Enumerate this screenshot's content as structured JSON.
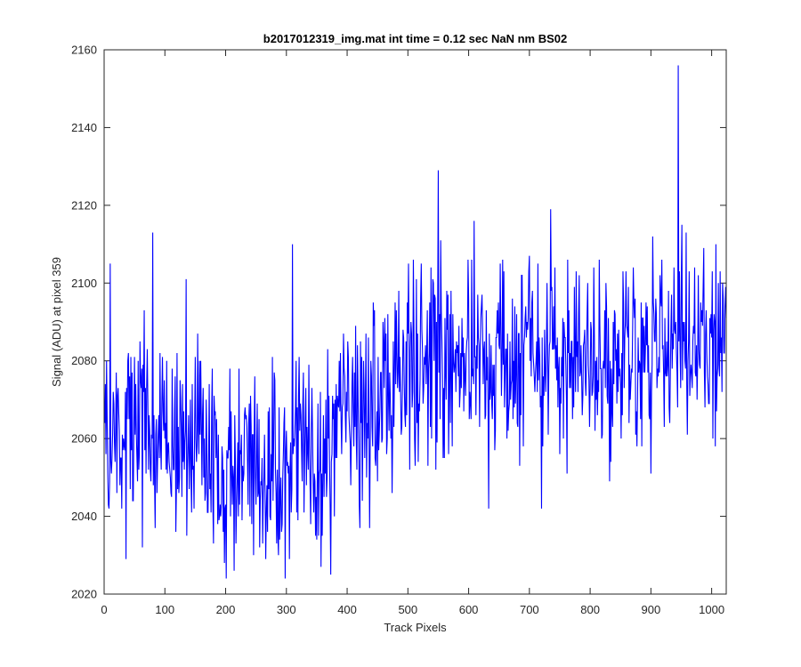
{
  "chart_data": {
    "type": "line",
    "title": "b2017012319_img.mat int time = 0.12 sec  NaN nm BS02",
    "xlabel": "Track Pixels",
    "ylabel": "Signal (ADU) at pixel 359",
    "xlim": [
      0,
      1024
    ],
    "ylim": [
      2020,
      2160
    ],
    "xticks": [
      0,
      100,
      200,
      300,
      400,
      500,
      600,
      700,
      800,
      900,
      1000
    ],
    "yticks": [
      2020,
      2040,
      2060,
      2080,
      2100,
      2120,
      2140,
      2160
    ],
    "grid": false,
    "line_color": "#0000ff",
    "series": [
      {
        "x_start": 1,
        "x_step": 1,
        "n_points": 1024,
        "trend": [
          [
            0,
            2064
          ],
          [
            100,
            2062
          ],
          [
            200,
            2052
          ],
          [
            300,
            2055
          ],
          [
            360,
            2052
          ],
          [
            420,
            2066
          ],
          [
            480,
            2075
          ],
          [
            560,
            2084
          ],
          [
            650,
            2079
          ],
          [
            760,
            2084
          ],
          [
            850,
            2079
          ],
          [
            940,
            2085
          ],
          [
            1024,
            2082
          ]
        ],
        "noise_amplitude": 13,
        "spikes": [
          [
            10,
            2105
          ],
          [
            80,
            2113
          ],
          [
            135,
            2101
          ],
          [
            305,
            2029
          ],
          [
            310,
            2110
          ],
          [
            357,
            2027
          ],
          [
            550,
            2129
          ],
          [
            633,
            2042
          ],
          [
            720,
            2042
          ],
          [
            945,
            2156
          ],
          [
            1002,
            2060
          ]
        ]
      }
    ]
  }
}
